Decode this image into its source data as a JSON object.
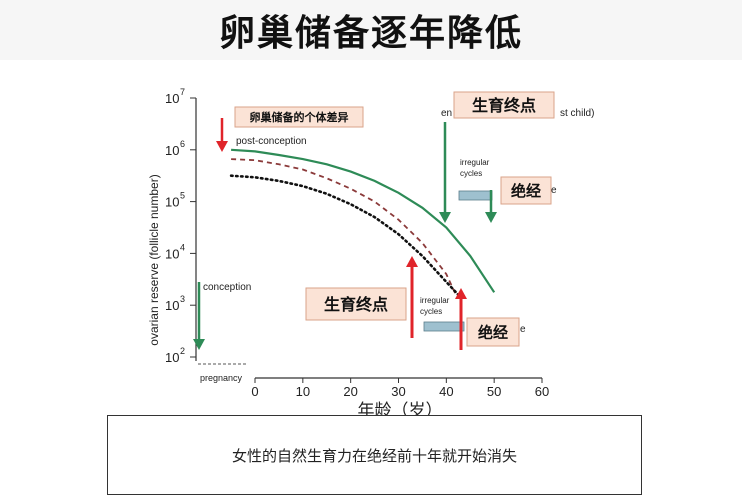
{
  "title": "卵巢储备逐年降低",
  "caption": "女性的自然生育力在绝经前十年就开始消失",
  "colors": {
    "green": "#2e8b57",
    "red": "#e0242a",
    "dashed": "#8b3a3a",
    "dotted": "#111111",
    "bar": "#9ec0cf",
    "label_bg": "#fbe3d6",
    "label_border": "#d9a38a"
  },
  "chart_data": {
    "type": "line",
    "xlabel": "年龄（岁）",
    "ylabel": "ovarian reserve (follicle number)",
    "xlim": [
      0,
      60
    ],
    "ylim_log10": [
      2,
      7
    ],
    "x_ticks": [
      "0",
      "10",
      "20",
      "30",
      "40",
      "50",
      "60"
    ],
    "y_tick_exponents": [
      "2",
      "3",
      "4",
      "5",
      "6",
      "7"
    ],
    "pregnancy_label": "pregnancy",
    "series": [
      {
        "style": "solid-green",
        "x": [
          -5,
          0,
          5,
          10,
          15,
          20,
          25,
          30,
          35,
          40,
          45,
          50
        ],
        "y": [
          6.0,
          5.97,
          5.9,
          5.82,
          5.72,
          5.58,
          5.4,
          5.17,
          4.88,
          4.5,
          3.95,
          3.25
        ]
      },
      {
        "style": "dashed-red",
        "x": [
          -5,
          0,
          5,
          10,
          15,
          20,
          25,
          30,
          35,
          40,
          42
        ],
        "y": [
          5.82,
          5.8,
          5.72,
          5.62,
          5.45,
          5.25,
          5.0,
          4.65,
          4.2,
          3.6,
          3.2
        ]
      },
      {
        "style": "dotted-black",
        "x": [
          -5,
          0,
          5,
          10,
          15,
          20,
          25,
          30,
          35,
          40,
          43
        ],
        "y": [
          5.5,
          5.47,
          5.4,
          5.3,
          5.15,
          4.95,
          4.7,
          4.37,
          3.95,
          3.45,
          3.15
        ]
      }
    ],
    "annotations": {
      "individual_diff": "卵巢储备的个体差异",
      "post_conception": "post-conception",
      "conception": "conception",
      "fertility_end": "生育终点",
      "menopause": "绝经",
      "irregular_cycles": "irregular cycles",
      "partial_end_label": "en",
      "partial_child_label": "st child)",
      "partial_e_upper": "e",
      "partial_e_lower": "e"
    }
  }
}
